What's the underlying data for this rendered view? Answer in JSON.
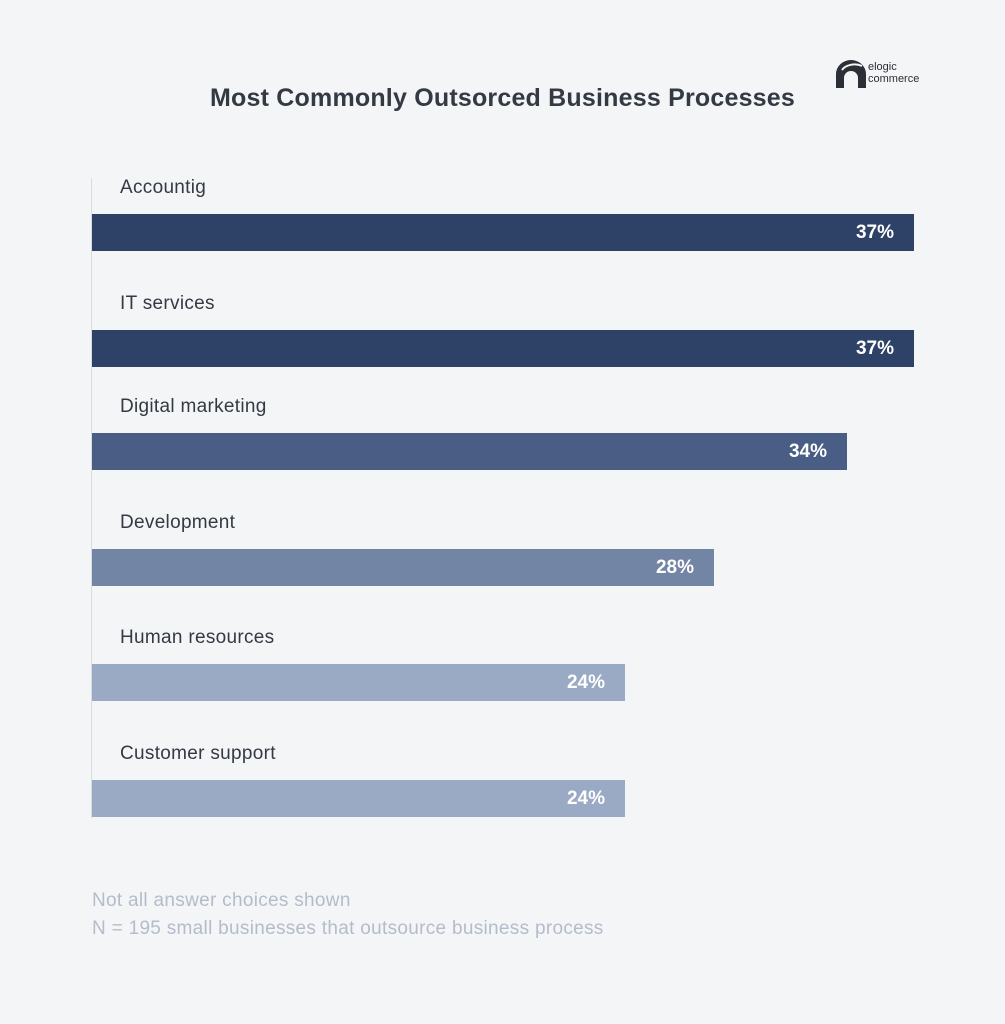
{
  "chart_data": {
    "type": "bar",
    "orientation": "horizontal",
    "title": "Most Commonly Outsorced Business Processes",
    "categories": [
      "Accountig",
      "IT services",
      "Digital marketing",
      "Development",
      "Human resources",
      "Customer support"
    ],
    "values": [
      37,
      37,
      34,
      28,
      24,
      24
    ],
    "value_labels": [
      "37%",
      "37%",
      "34%",
      "28%",
      "24%",
      "24%"
    ],
    "bar_colors": [
      "#2e4268",
      "#2e4268",
      "#4a5e85",
      "#7385a4",
      "#9aaac4",
      "#9aaac4"
    ],
    "xlabel": "",
    "ylabel": "",
    "xlim": [
      0,
      37
    ],
    "grid": false,
    "legend": "none"
  },
  "logo": {
    "text": "elogic\ncommerce",
    "icon": "elogic-arch-logo-icon"
  },
  "footnotes": [
    "Not all answer choices shown",
    "N = 195 small businesses that outsource business process"
  ],
  "colors": {
    "background": "#f4f5f7",
    "title": "#333a44",
    "footnote": "#b4bccb"
  }
}
